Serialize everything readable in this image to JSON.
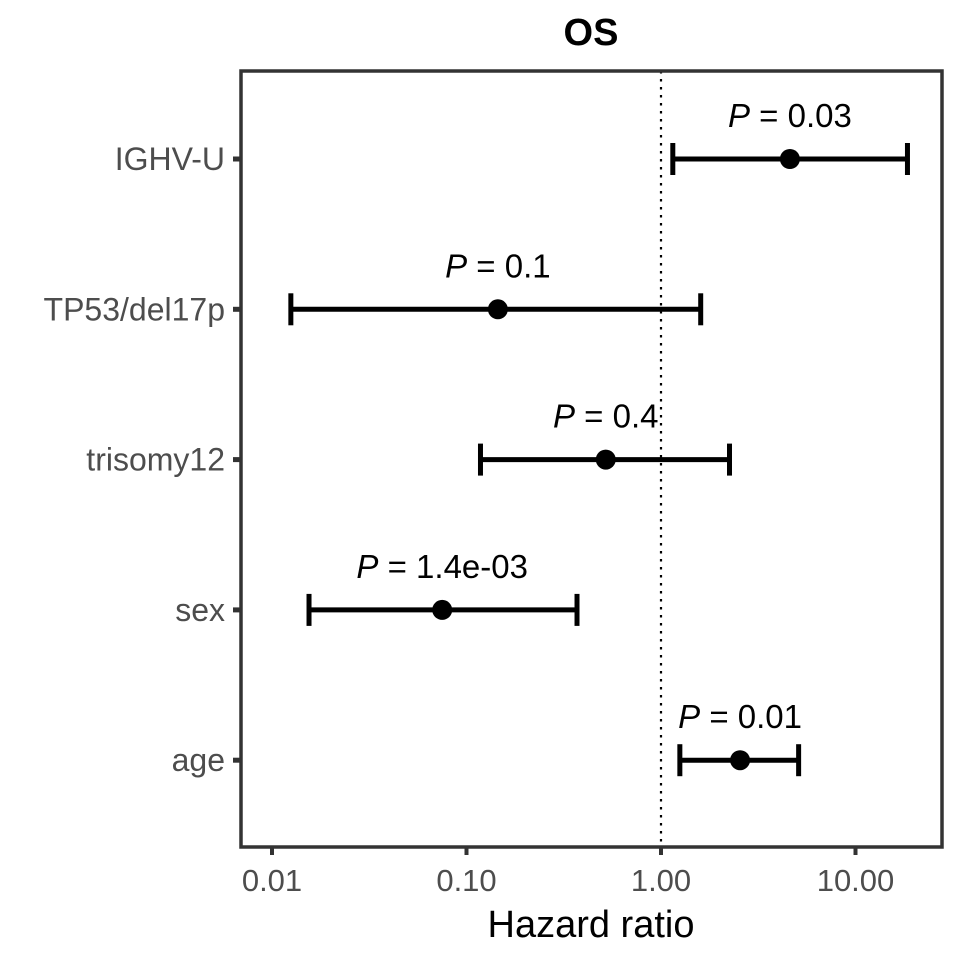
{
  "chart_data": {
    "type": "forest",
    "title": "OS",
    "xlabel": "Hazard ratio",
    "ylabel": "",
    "x_scale": "log",
    "xlim": [
      0.0072,
      28
    ],
    "x_ticks": [
      0.01,
      0.1,
      1,
      10
    ],
    "x_tick_labels": [
      "0.01",
      "0.10",
      "1.00",
      "10.00"
    ],
    "reference_line": 1,
    "grid": false,
    "legend": "none",
    "colors": {
      "point": "#000000",
      "panel_border": "#333333",
      "tick_text": "#4d4d4d"
    },
    "rows": [
      {
        "label": "IGHV-U",
        "hr": 4.6,
        "lower": 1.15,
        "upper": 18.5,
        "p_label": "P",
        "p_value": "= 0.03"
      },
      {
        "label": "TP53/del17p",
        "hr": 0.145,
        "lower": 0.0125,
        "upper": 1.6,
        "p_label": "P",
        "p_value": "= 0.1"
      },
      {
        "label": "trisomy12",
        "hr": 0.52,
        "lower": 0.118,
        "upper": 2.25,
        "p_label": "P",
        "p_value": "= 0.4"
      },
      {
        "label": "sex",
        "hr": 0.075,
        "lower": 0.0155,
        "upper": 0.37,
        "p_label": "P",
        "p_value": "= 1.4e-03"
      },
      {
        "label": "age",
        "hr": 2.55,
        "lower": 1.25,
        "upper": 5.1,
        "p_label": "P",
        "p_value": "= 0.01"
      }
    ]
  }
}
